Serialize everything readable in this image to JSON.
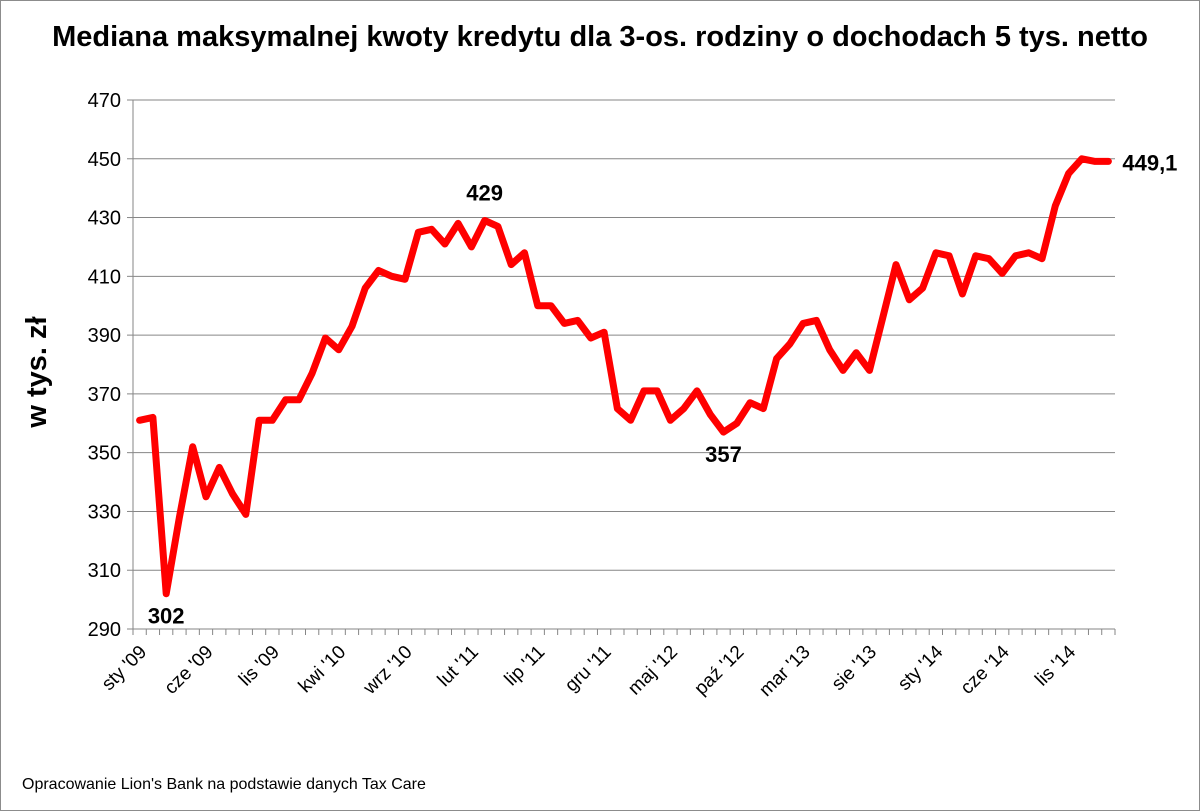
{
  "chart_data": {
    "type": "line",
    "title": "Mediana maksymalnej kwoty kredytu dla 3-os. rodziny o dochodach 5 tys. netto",
    "xlabel": "",
    "ylabel": "w tys. zł",
    "ylim": [
      290,
      470
    ],
    "yticks": [
      "290",
      "310",
      "330",
      "350",
      "370",
      "390",
      "410",
      "430",
      "450",
      "470"
    ],
    "grid": true,
    "legend": "none",
    "color": "#ff0000",
    "x_tick_labels": [
      "sty '09",
      "cze '09",
      "lis '09",
      "kwi '10",
      "wrz '10",
      "lut '11",
      "lip '11",
      "gru '11",
      "maj '12",
      "paź '12",
      "mar '13",
      "sie '13",
      "sty '14",
      "cze '14",
      "lis '14"
    ],
    "x_tick_positions": [
      0,
      5,
      10,
      15,
      20,
      25,
      30,
      35,
      40,
      45,
      50,
      55,
      60,
      65,
      70
    ],
    "values": [
      361,
      362,
      302,
      328,
      352,
      335,
      345,
      336,
      329,
      361,
      361,
      368,
      368,
      377,
      389,
      385,
      393,
      406,
      412,
      410,
      409,
      425,
      426,
      421,
      428,
      420,
      429,
      427,
      414,
      418,
      400,
      400,
      394,
      395,
      389,
      391,
      365,
      361,
      371,
      371,
      361,
      365,
      371,
      363,
      357,
      360,
      367,
      365,
      382,
      387,
      394,
      395,
      385,
      378,
      384,
      378,
      396,
      414,
      402,
      406,
      418,
      417,
      404,
      417,
      416,
      411,
      417,
      418,
      416,
      434,
      445,
      450,
      449.1,
      449.1
    ],
    "annotations": [
      {
        "index": 2,
        "label": "302",
        "pos": "below"
      },
      {
        "index": 26,
        "label": "429",
        "pos": "above"
      },
      {
        "index": 44,
        "label": "357",
        "pos": "below"
      },
      {
        "index": 73,
        "label": "449,1",
        "pos": "right"
      }
    ]
  },
  "footnote": "Opracowanie Lion's Bank na podstawie danych Tax Care"
}
